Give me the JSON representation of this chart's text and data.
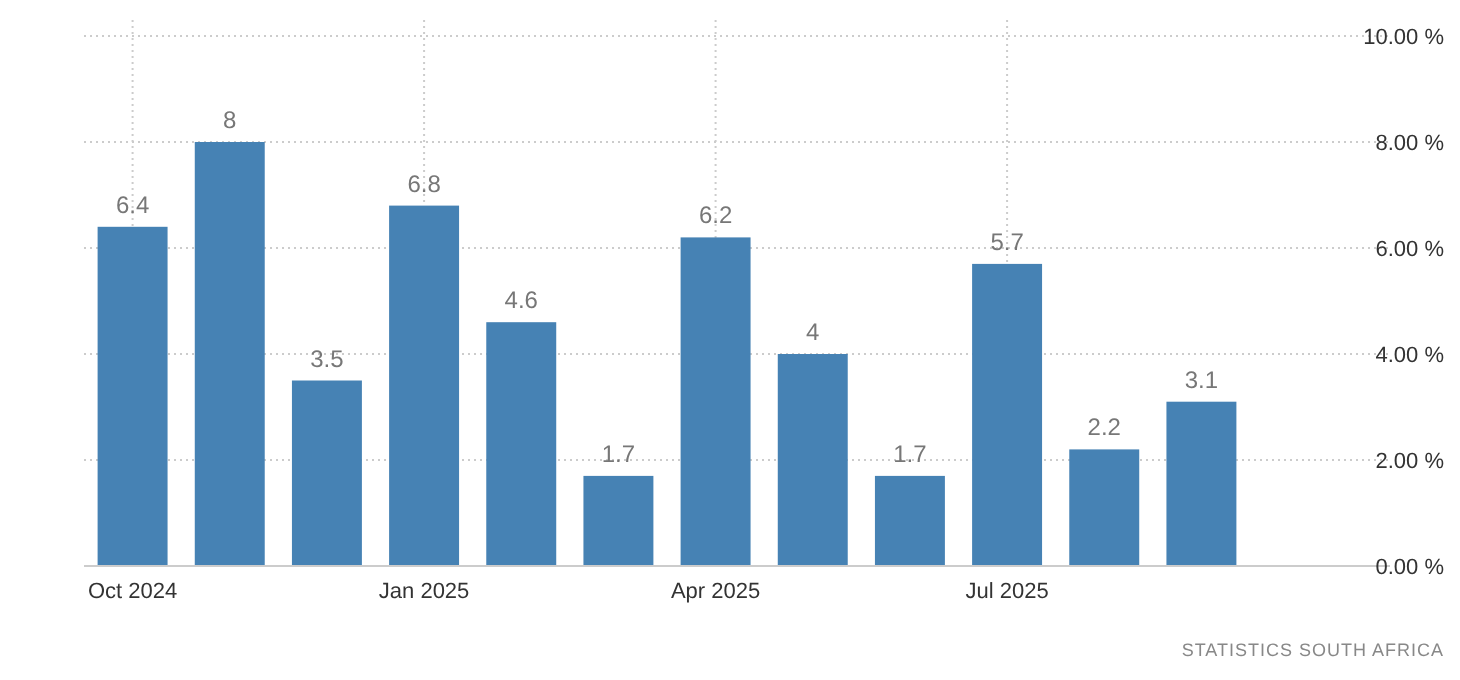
{
  "chart_data": {
    "type": "bar",
    "categories": [
      "Oct 2024",
      null,
      null,
      "Jan 2025",
      null,
      null,
      "Apr 2025",
      null,
      null,
      "Jul 2025",
      null,
      null
    ],
    "values": [
      6.4,
      8,
      3.5,
      6.8,
      4.6,
      1.7,
      6.2,
      4,
      1.7,
      5.7,
      2.2,
      3.1
    ],
    "color": "#4682b4",
    "ylim": [
      0,
      10
    ],
    "yticks": [
      {
        "value": 0,
        "label": "0.00 %"
      },
      {
        "value": 2,
        "label": "2.00 %"
      },
      {
        "value": 4,
        "label": "4.00 %"
      },
      {
        "value": 6,
        "label": "6.00 %"
      },
      {
        "value": 8,
        "label": "8.00 %"
      },
      {
        "value": 10,
        "label": "10.00 %"
      }
    ],
    "grid": true,
    "data_labels": true,
    "annotations": [
      "STATISTICS SOUTH AFRICA"
    ]
  }
}
